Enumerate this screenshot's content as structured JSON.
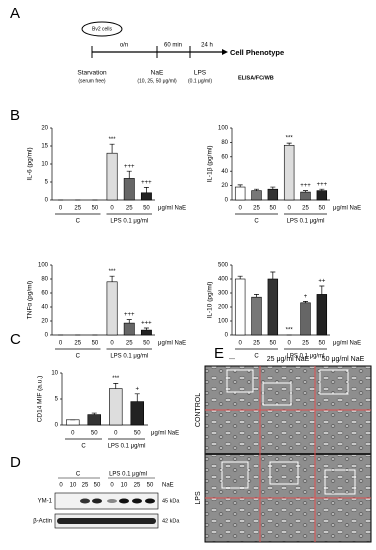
{
  "panel_labels": [
    "A",
    "B",
    "C",
    "D",
    "E"
  ],
  "panel_a": {
    "cell": "Bv2 cells",
    "intervals": [
      "o/n",
      "60 min",
      "24 h"
    ],
    "stages": [
      {
        "name": "Starvation",
        "note": "(serum free)"
      },
      {
        "name": "NaE",
        "note": "(10, 25, 50 μg/ml)"
      },
      {
        "name": "LPS",
        "note": "(0.1 μg/ml)"
      }
    ],
    "outcome": "Cell Phenotype",
    "readout": "ELISA/FC/WB"
  },
  "chart_data": [
    {
      "type": "bar",
      "ylabel": "IL-6 (pg/ml)",
      "categories": [
        "0",
        "25",
        "50",
        "0",
        "25",
        "50"
      ],
      "groups": [
        "C",
        "LPS 0.1 μg/ml"
      ],
      "unit": "μg/ml NaE",
      "values": [
        0,
        0,
        0,
        13,
        6,
        2
      ],
      "errors": [
        0,
        0,
        0,
        2.5,
        2,
        1.5
      ],
      "annotations": [
        null,
        null,
        null,
        "***",
        "+++",
        "+++"
      ],
      "colors": [
        "#ffffff",
        "#777777",
        "#333333",
        "#dddddd",
        "#666666",
        "#222222"
      ],
      "ylim": [
        0,
        20
      ],
      "yticks": [
        0,
        5,
        10,
        15,
        20
      ]
    },
    {
      "type": "bar",
      "ylabel": "IL-1β (pg/ml)",
      "categories": [
        "0",
        "25",
        "50",
        "0",
        "25",
        "50"
      ],
      "groups": [
        "C",
        "LPS 0.1 μg/ml"
      ],
      "unit": "μg/ml NaE",
      "values": [
        18,
        13,
        15,
        76,
        11,
        13
      ],
      "errors": [
        3,
        2,
        3,
        3,
        2,
        2
      ],
      "annotations": [
        null,
        null,
        null,
        "***",
        "+++",
        "+++"
      ],
      "colors": [
        "#ffffff",
        "#777777",
        "#333333",
        "#dddddd",
        "#666666",
        "#222222"
      ],
      "ylim": [
        0,
        100
      ],
      "yticks": [
        0,
        20,
        40,
        60,
        80,
        100
      ]
    },
    {
      "type": "bar",
      "ylabel": "TNFα (pg/ml)",
      "categories": [
        "0",
        "25",
        "50",
        "0",
        "25",
        "50"
      ],
      "groups": [
        "C",
        "LPS 0.1 μg/ml"
      ],
      "unit": "μg/ml NaE",
      "values": [
        0,
        0,
        0,
        76,
        17,
        7
      ],
      "errors": [
        0,
        0,
        0,
        8,
        5,
        3
      ],
      "annotations": [
        null,
        null,
        null,
        "***",
        "+++",
        "+++"
      ],
      "colors": [
        "#ffffff",
        "#777777",
        "#333333",
        "#dddddd",
        "#666666",
        "#222222"
      ],
      "ylim": [
        0,
        100
      ],
      "yticks": [
        0,
        20,
        40,
        60,
        80,
        100
      ]
    },
    {
      "type": "bar",
      "ylabel": "IL-10 (pg/ml)",
      "categories": [
        "0",
        "25",
        "50",
        "0",
        "25",
        "50"
      ],
      "groups": [
        "C",
        "LPS 0.1 μg/ml"
      ],
      "unit": "μg/ml NaE",
      "values": [
        400,
        270,
        400,
        0,
        230,
        290
      ],
      "errors": [
        20,
        20,
        50,
        0,
        10,
        60
      ],
      "annotations": [
        null,
        null,
        null,
        "***",
        "+",
        "++"
      ],
      "colors": [
        "#ffffff",
        "#777777",
        "#333333",
        "#dddddd",
        "#666666",
        "#222222"
      ],
      "ylim": [
        0,
        500
      ],
      "yticks": [
        0,
        100,
        200,
        300,
        400,
        500
      ]
    },
    {
      "type": "bar",
      "ylabel": "CD14 MIF (a.u.)",
      "categories": [
        "0",
        "50",
        "0",
        "50"
      ],
      "groups": [
        "C",
        "LPS 0.1 μg/ml"
      ],
      "unit": "μg/ml NaE",
      "values": [
        1,
        2,
        7,
        4.5
      ],
      "errors": [
        0,
        0.3,
        1,
        1.5
      ],
      "annotations": [
        null,
        null,
        "***",
        "+"
      ],
      "colors": [
        "#ffffff",
        "#333333",
        "#dddddd",
        "#222222"
      ],
      "ylim": [
        0,
        10
      ],
      "yticks": [
        0,
        5,
        10
      ]
    }
  ],
  "panel_d": {
    "groups": [
      "C",
      "LPS 0.1 μg/ml"
    ],
    "lanes": [
      "0",
      "10",
      "25",
      "50",
      "0",
      "10",
      "25",
      "50"
    ],
    "unit": "NaE",
    "rows": [
      {
        "name": "YM-1",
        "size": "45 kDa"
      },
      {
        "name": "β-Actin",
        "size": "42 kDa"
      }
    ]
  },
  "panel_e": {
    "columns": [
      "---",
      "25 μg/ml NaE",
      "50 μg/ml NaE"
    ],
    "rows": [
      "CONTROL",
      "LPS"
    ]
  }
}
